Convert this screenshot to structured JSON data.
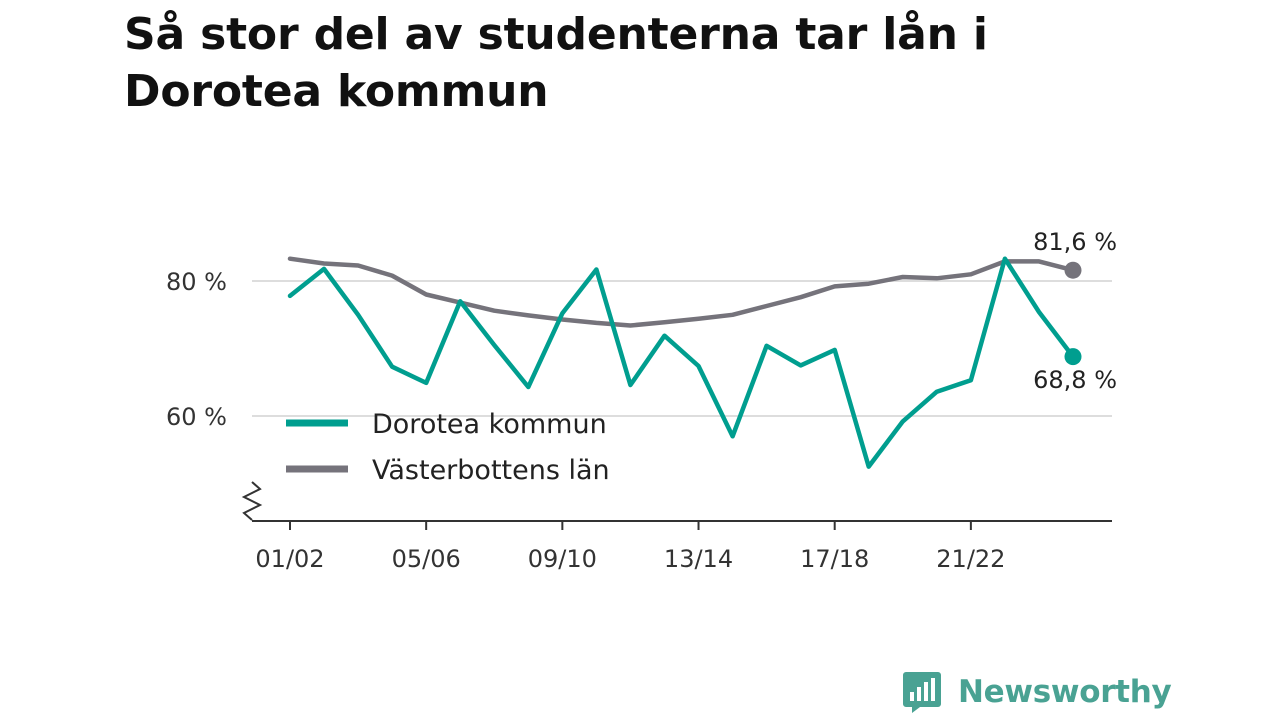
{
  "title": "Så stor del av studenterna tar lån i Dorotea kommun",
  "brand": {
    "name": "Newsworthy",
    "color": "#49a293"
  },
  "colors": {
    "dorotea": "#009e8f",
    "vasterbotten": "#75737b",
    "grid": "#dddddd",
    "axis": "#333333"
  },
  "chart_data": {
    "type": "line",
    "x": [
      "01/02",
      "02/03",
      "03/04",
      "04/05",
      "05/06",
      "06/07",
      "07/08",
      "08/09",
      "09/10",
      "10/11",
      "11/12",
      "12/13",
      "13/14",
      "14/15",
      "15/16",
      "16/17",
      "17/18",
      "18/19",
      "19/20",
      "20/21",
      "21/22",
      "22/23",
      "23/24",
      "24/25"
    ],
    "x_tick_labels": [
      "01/02",
      "05/06",
      "09/10",
      "13/14",
      "17/18",
      "21/22"
    ],
    "y_tick_labels": [
      {
        "value": 60,
        "label": "60 %"
      },
      {
        "value": 80,
        "label": "80 %"
      }
    ],
    "ylim": [
      45,
      90
    ],
    "y_axis_break": true,
    "grid": true,
    "legend_position": "center-left",
    "series": [
      {
        "name": "Dorotea kommun",
        "color": "#009e8f",
        "values": [
          77.8,
          81.8,
          75.0,
          67.3,
          64.9,
          77.0,
          70.5,
          64.3,
          75.2,
          81.7,
          64.6,
          71.9,
          67.4,
          57.0,
          70.4,
          67.5,
          69.8,
          52.5,
          59.2,
          63.6,
          65.3,
          83.3,
          75.4,
          68.8
        ],
        "end_label": "68,8 %"
      },
      {
        "name": "Västerbottens län",
        "color": "#75737b",
        "values": [
          83.3,
          82.6,
          82.3,
          80.8,
          78.0,
          76.8,
          75.6,
          74.9,
          74.3,
          73.8,
          73.4,
          73.9,
          74.4,
          75.0,
          76.3,
          77.6,
          79.2,
          79.6,
          80.6,
          80.4,
          81.0,
          82.9,
          82.9,
          81.6
        ],
        "end_label": "81,6 %"
      }
    ]
  }
}
